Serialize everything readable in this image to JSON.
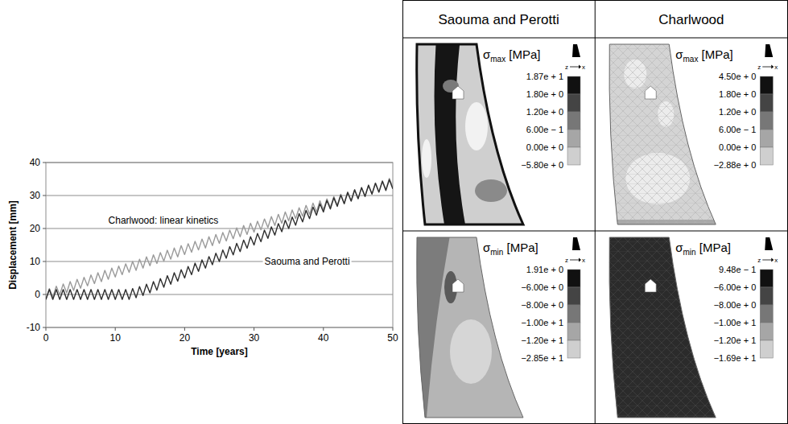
{
  "chart_data": {
    "type": "line",
    "x_label": "Time [years]",
    "y_label": "Displacement [mm]",
    "xlim": [
      0,
      50
    ],
    "xticks": [
      0,
      10,
      20,
      30,
      40,
      50
    ],
    "ylim": [
      -10,
      40
    ],
    "yticks": [
      -10,
      0,
      10,
      20,
      30,
      40
    ],
    "grid": true,
    "x": [
      0,
      0.5,
      1,
      1.5,
      2,
      2.5,
      3,
      3.5,
      4,
      4.5,
      5,
      5.5,
      6,
      6.5,
      7,
      7.5,
      8,
      8.5,
      9,
      9.5,
      10,
      10.5,
      11,
      11.5,
      12,
      12.5,
      13,
      13.5,
      14,
      14.5,
      15,
      15.5,
      16,
      16.5,
      17,
      17.5,
      18,
      18.5,
      19,
      19.5,
      20,
      20.5,
      21,
      21.5,
      22,
      22.5,
      23,
      23.5,
      24,
      24.5,
      25,
      25.5,
      26,
      26.5,
      27,
      27.5,
      28,
      28.5,
      29,
      29.5,
      30,
      30.5,
      31,
      31.5,
      32,
      32.5,
      33,
      33.5,
      34,
      34.5,
      35,
      35.5,
      36,
      36.5,
      37,
      37.5,
      38,
      38.5,
      39,
      39.5,
      40,
      40.5,
      41,
      41.5,
      42,
      42.5,
      43,
      43.5,
      44,
      44.5,
      45,
      45.5,
      46,
      46.5,
      47,
      47.5,
      48,
      48.5,
      49,
      49.5,
      50
    ],
    "series": [
      {
        "name": "Charlwood: linear kinetics",
        "color": "#9a9a9a",
        "line_style": "solid",
        "values": [
          -1.5,
          1.8,
          -0.8,
          2.5,
          -0.1,
          3.2,
          0.5,
          3.9,
          1.2,
          4.6,
          1.9,
          5.2,
          2.6,
          5.9,
          3.3,
          6.6,
          3.9,
          7.3,
          4.6,
          8.0,
          5.3,
          8.6,
          6.0,
          9.3,
          6.7,
          10.0,
          7.3,
          10.7,
          8.0,
          11.4,
          8.7,
          12.0,
          9.4,
          12.7,
          10.1,
          13.4,
          10.7,
          14.1,
          11.4,
          14.8,
          12.1,
          15.4,
          12.8,
          16.1,
          13.5,
          16.8,
          14.1,
          17.5,
          14.8,
          18.2,
          15.5,
          18.8,
          16.2,
          19.5,
          16.9,
          20.2,
          17.5,
          20.9,
          18.2,
          21.6,
          18.9,
          22.2,
          19.6,
          22.9,
          20.3,
          23.6,
          20.9,
          24.3,
          21.6,
          25.0,
          22.3,
          25.6,
          23.0,
          26.3,
          23.7,
          27.0,
          24.3,
          27.7,
          25.0,
          28.4,
          25.7,
          29.0,
          26.4,
          29.7,
          27.1,
          30.4,
          27.7,
          31.1,
          28.4,
          31.8,
          29.1,
          32.4,
          29.8,
          33.1,
          30.5,
          33.8,
          31.1,
          34.5,
          31.8,
          35.2,
          32.5
        ]
      },
      {
        "name": "Saouma and Perotti",
        "color": "#2e2e2e",
        "line_style": "solid",
        "values": [
          -1.5,
          1.5,
          -1.5,
          1.5,
          -1.5,
          1.5,
          -1.5,
          1.5,
          -1.5,
          1.5,
          -1.5,
          1.5,
          -1.5,
          1.5,
          -1.5,
          1.5,
          -1.5,
          1.5,
          -1.5,
          1.5,
          -1.5,
          1.5,
          -1.5,
          1.5,
          -1.5,
          1.8,
          -1.0,
          2.4,
          -0.3,
          3.1,
          0.5,
          3.9,
          1.3,
          4.8,
          2.2,
          5.7,
          3.1,
          6.6,
          4.0,
          7.5,
          5.0,
          8.5,
          6.0,
          9.5,
          7.0,
          10.5,
          8.0,
          11.5,
          9.0,
          12.5,
          10.0,
          13.5,
          11.0,
          14.5,
          12.0,
          15.5,
          13.0,
          16.5,
          14.0,
          17.5,
          15.0,
          18.5,
          16.0,
          19.5,
          17.0,
          20.5,
          18.0,
          21.5,
          19.0,
          22.5,
          20.0,
          23.5,
          21.0,
          24.5,
          22.0,
          25.5,
          23.0,
          26.5,
          24.0,
          27.5,
          25.0,
          28.5,
          25.9,
          29.3,
          26.7,
          30.1,
          27.5,
          30.9,
          28.3,
          31.7,
          29.0,
          32.4,
          29.7,
          33.1,
          30.4,
          33.7,
          31.0,
          34.3,
          31.5,
          34.8,
          32.0
        ]
      }
    ]
  },
  "stress_table": {
    "columns": [
      "Saouma and Perotti",
      "Charlwood"
    ],
    "panels": [
      [
        {
          "title": {
            "symbol": "σ",
            "subscript": "max",
            "unit": "[MPa]"
          },
          "axes": [
            "z",
            "x"
          ],
          "scale_labels": [
            "1.87e + 1",
            "1.80e + 0",
            "1.20e + 0",
            "6.00e − 1",
            "0.00e + 0",
            "−5.80e + 0"
          ]
        },
        {
          "title": {
            "symbol": "σ",
            "subscript": "max",
            "unit": "[MPa]"
          },
          "axes": [
            "z",
            "x"
          ],
          "scale_labels": [
            "4.50e + 0",
            "1.80e + 0",
            "1.20e + 0",
            "6.00e − 1",
            "0.00e + 0",
            "−2.88e + 0"
          ]
        }
      ],
      [
        {
          "title": {
            "symbol": "σ",
            "subscript": "min",
            "unit": "[MPa]"
          },
          "axes": [
            "z",
            "x"
          ],
          "scale_labels": [
            "1.91e + 0",
            "−6.00e + 0",
            "−8.00e + 0",
            "−1.00e + 1",
            "−1.20e + 1",
            "−2.85e + 1"
          ]
        },
        {
          "title": {
            "symbol": "σ",
            "subscript": "min",
            "unit": "[MPa]"
          },
          "axes": [
            "z",
            "x"
          ],
          "scale_labels": [
            "9.48e − 1",
            "−6.00e + 0",
            "−8.00e + 0",
            "−1.00e + 1",
            "−1.20e + 1",
            "−1.69e + 1"
          ]
        }
      ]
    ]
  }
}
